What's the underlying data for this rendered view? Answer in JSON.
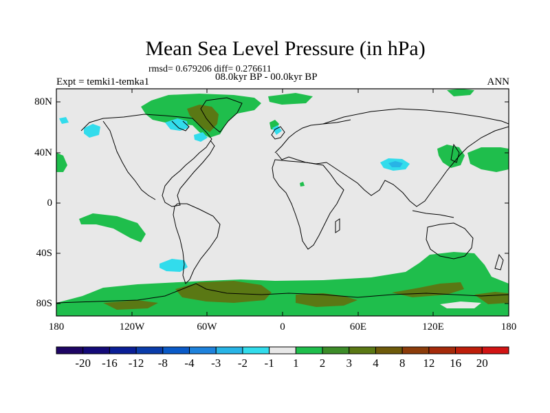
{
  "title": "Mean Sea Level Pressure (in hPa)",
  "stats_line": "rmsd= 0.679206 diff= 0.276611",
  "period_line": "08.0kyr BP - 00.0kyr BP",
  "left_string": "Expt = temki1-temka1",
  "right_string": "ANN",
  "y_ticks": [
    "80N",
    "40N",
    "0",
    "40S",
    "80S"
  ],
  "x_ticks": [
    "180",
    "120W",
    "60W",
    "0",
    "60E",
    "120E",
    "180"
  ],
  "colorbar": {
    "labels": [
      "-20",
      "-16",
      "-12",
      "-8",
      "-4",
      "-3",
      "-2",
      "-1",
      "1",
      "2",
      "3",
      "4",
      "8",
      "12",
      "16",
      "20"
    ],
    "colors": [
      "#1e0564",
      "#140a78",
      "#0a1e96",
      "#0a3caa",
      "#0a5ac8",
      "#1e82dc",
      "#28b4e6",
      "#32dcec",
      "#e8e8e8",
      "#1fbe4c",
      "#3c8c28",
      "#5a7814",
      "#6e5a0a",
      "#8c3c0a",
      "#a52a0a",
      "#be1e0a",
      "#d21414"
    ]
  },
  "colors": {
    "ocean_bg": "#e8e8e8",
    "pos_1_2": "#1fbe4c",
    "pos_2_3": "#3c8c28",
    "pos_3_4": "#5a7814",
    "neg_1_2": "#32dcec",
    "neg_2_3": "#28b4e6"
  }
}
